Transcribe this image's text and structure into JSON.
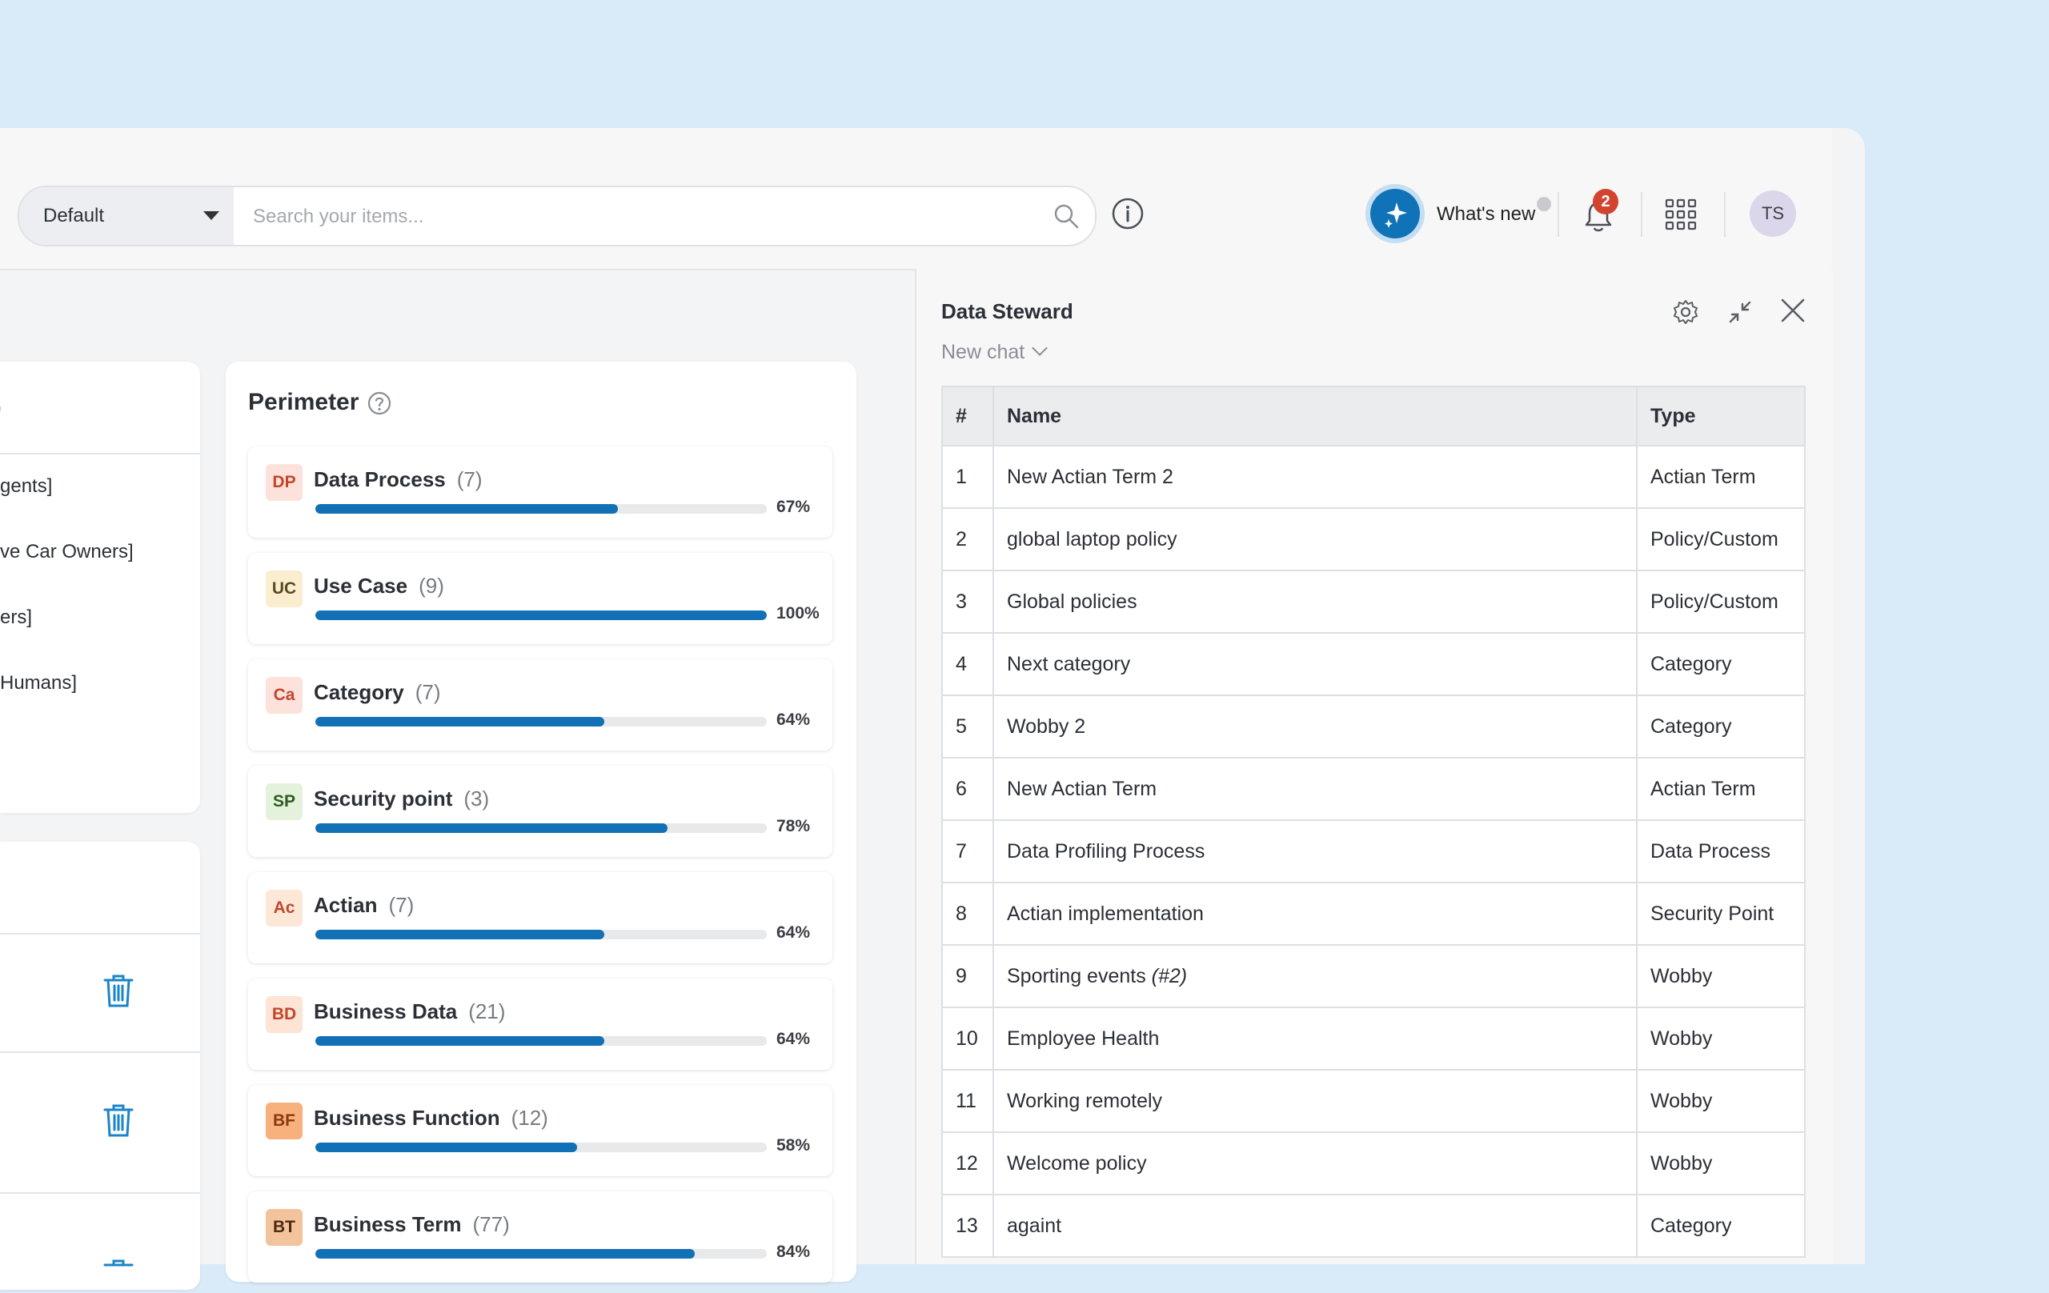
{
  "header": {
    "scope_label": "Default",
    "search_placeholder": "Search your items...",
    "whats_new_label": "What's new",
    "notification_count": "2",
    "user_initials": "TS"
  },
  "left_panel": {
    "items": [
      "gents]",
      "ve Car Owners]",
      "ers]",
      "Humans]"
    ]
  },
  "perimeter": {
    "title": "Perimeter",
    "items": [
      {
        "abbr": "DP",
        "label": "Data Process",
        "count": "(7)",
        "percent_label": "67%",
        "percent": 67,
        "badge_bg": "#fde2dc",
        "badge_fg": "#c2462d"
      },
      {
        "abbr": "UC",
        "label": "Use Case",
        "count": "(9)",
        "percent_label": "100%",
        "percent": 100,
        "badge_bg": "#fbeed0",
        "badge_fg": "#5a4a1f"
      },
      {
        "abbr": "Ca",
        "label": "Category",
        "count": "(7)",
        "percent_label": "64%",
        "percent": 64,
        "badge_bg": "#fde2dc",
        "badge_fg": "#c2462d"
      },
      {
        "abbr": "SP",
        "label": "Security point",
        "count": "(3)",
        "percent_label": "78%",
        "percent": 78,
        "badge_bg": "#e4f2dc",
        "badge_fg": "#2f5a21"
      },
      {
        "abbr": "Ac",
        "label": "Actian",
        "count": "(7)",
        "percent_label": "64%",
        "percent": 64,
        "badge_bg": "#fde8d7",
        "badge_fg": "#c2462d"
      },
      {
        "abbr": "BD",
        "label": "Business Data",
        "count": "(21)",
        "percent_label": "64%",
        "percent": 64,
        "badge_bg": "#fde4d4",
        "badge_fg": "#c2462d"
      },
      {
        "abbr": "BF",
        "label": "Business Function",
        "count": "(12)",
        "percent_label": "58%",
        "percent": 58,
        "badge_bg": "#f8b07d",
        "badge_fg": "#8a3a12"
      },
      {
        "abbr": "BT",
        "label": "Business Term",
        "count": "(77)",
        "percent_label": "84%",
        "percent": 84,
        "badge_bg": "#f3c49c",
        "badge_fg": "#4d2a10"
      }
    ]
  },
  "chat": {
    "title": "Data Steward",
    "subtitle": "New chat",
    "table": {
      "headers": [
        "#",
        "Name",
        "Type"
      ],
      "rows": [
        {
          "num": "1",
          "name": "New Actian Term 2",
          "type": "Actian Term"
        },
        {
          "num": "2",
          "name": "global laptop policy",
          "type": "Policy/Custom"
        },
        {
          "num": "3",
          "name": "Global policies",
          "type": "Policy/Custom"
        },
        {
          "num": "4",
          "name": "Next category",
          "type": "Category"
        },
        {
          "num": "5",
          "name": "Wobby 2",
          "type": "Category"
        },
        {
          "num": "6",
          "name": "New Actian Term",
          "type": "Actian Term"
        },
        {
          "num": "7",
          "name": "Data Profiling Process",
          "type": "Data Process"
        },
        {
          "num": "8",
          "name": "Actian implementation",
          "type": "Security Point"
        },
        {
          "num": "9",
          "name": "Sporting events",
          "name_suffix": "(#2)",
          "type": "Wobby"
        },
        {
          "num": "10",
          "name": "Employee Health",
          "type": "Wobby"
        },
        {
          "num": "11",
          "name": "Working remotely",
          "type": "Wobby"
        },
        {
          "num": "12",
          "name": "Welcome policy",
          "type": "Wobby"
        },
        {
          "num": "13",
          "name": "againt",
          "type": "Category"
        }
      ]
    }
  }
}
